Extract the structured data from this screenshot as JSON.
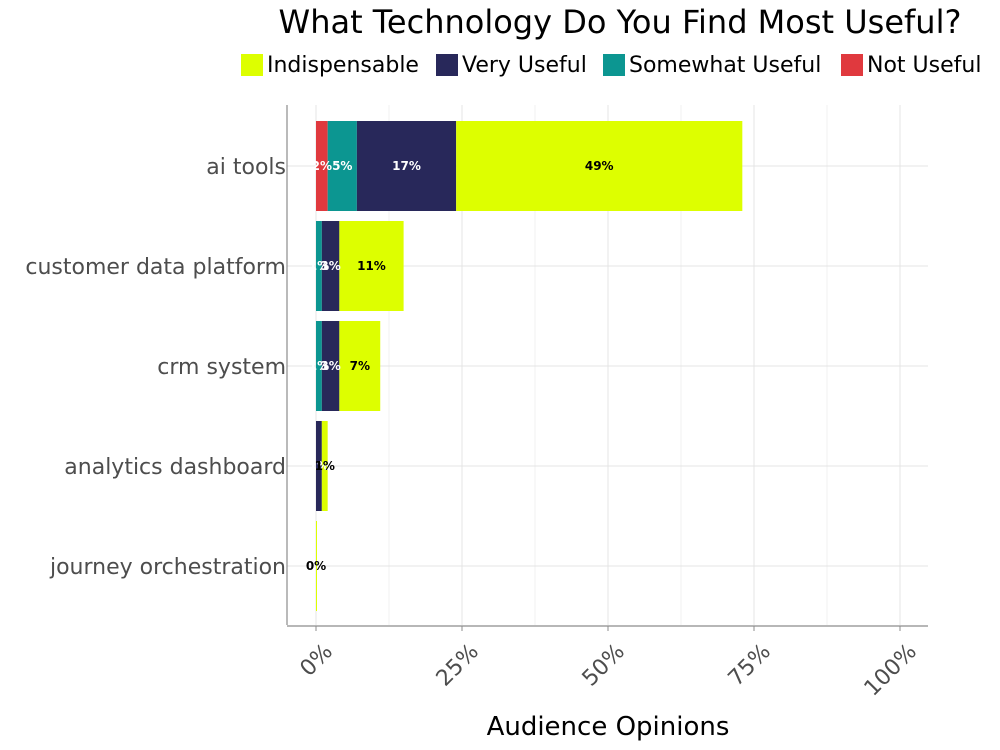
{
  "chart_data": {
    "type": "bar",
    "orientation": "horizontal",
    "stacked": true,
    "title": "What Technology Do You Find Most Useful?",
    "xlabel": "Audience Opinions",
    "ylabel": "",
    "xlim": [
      0,
      100
    ],
    "x_ticks": [
      "0%",
      "25%",
      "50%",
      "75%",
      "100%"
    ],
    "grid": true,
    "legend_position": "top",
    "categories": [
      "ai tools",
      "customer data platform",
      "crm system",
      "analytics dashboard",
      "journey orchestration"
    ],
    "series": [
      {
        "name": "Not Useful",
        "color": "#e0393e",
        "values": [
          2,
          0,
          0,
          0,
          0
        ],
        "labels": [
          "2%",
          "",
          "",
          "",
          ""
        ]
      },
      {
        "name": "Somewhat Useful",
        "color": "#0c9691",
        "values": [
          5,
          1,
          1,
          0,
          0
        ],
        "labels": [
          "5%",
          "1%",
          "1%",
          "",
          ""
        ]
      },
      {
        "name": "Very Useful",
        "color": "#28285a",
        "values": [
          17,
          3,
          3,
          1,
          0
        ],
        "labels": [
          "17%",
          "3%",
          "3%",
          "1%",
          ""
        ]
      },
      {
        "name": "Indispensable",
        "color": "#ddff00",
        "values": [
          49,
          11,
          7,
          1,
          0
        ],
        "labels": [
          "49%",
          "11%",
          "7%",
          "1%",
          "0%"
        ]
      }
    ],
    "legend_order": [
      "Indispensable",
      "Very Useful",
      "Somewhat Useful",
      "Not Useful"
    ]
  }
}
